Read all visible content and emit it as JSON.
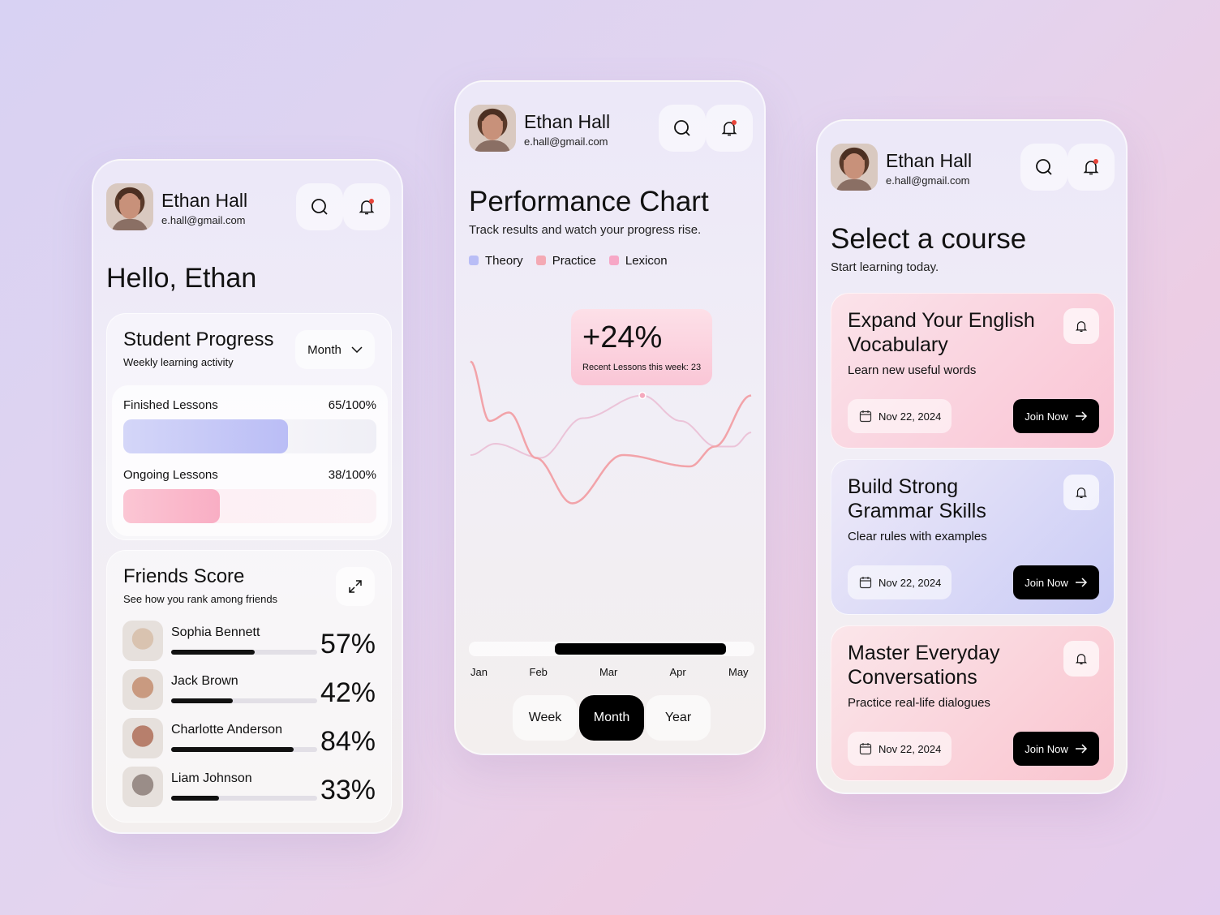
{
  "user": {
    "name": "Ethan Hall",
    "email": "e.hall@gmail.com"
  },
  "colors": {
    "theory": "#b9bdf6",
    "practice": "#f4a9b4",
    "lexicon": "#f7a7c6",
    "notification_dot": "#e8443a"
  },
  "left": {
    "greeting": "Hello, Ethan",
    "progress": {
      "title": "Student Progress",
      "subtitle": "Weekly learning activity",
      "period": "Month",
      "items": [
        {
          "label": "Finished Lessons",
          "value_text": "65/100%",
          "value": 65
        },
        {
          "label": "Ongoing Lessons",
          "value_text": "38/100%",
          "value": 38
        }
      ]
    },
    "friends": {
      "title": "Friends Score",
      "subtitle": "See how you rank among friends",
      "items": [
        {
          "name": "Sophia Bennett",
          "pct": "57%",
          "value": 57
        },
        {
          "name": "Jack Brown",
          "pct": "42%",
          "value": 42
        },
        {
          "name": "Charlotte Anderson",
          "pct": "84%",
          "value": 84
        },
        {
          "name": "Liam Johnson",
          "pct": "33%",
          "value": 33
        }
      ]
    }
  },
  "middle": {
    "title": "Performance Chart",
    "subtitle": "Track results and watch your progress rise.",
    "legend": [
      "Theory",
      "Practice",
      "Lexicon"
    ],
    "tooltip": {
      "value": "+24%",
      "label": "Recent Lessons this week: 23"
    },
    "periods": [
      "Week",
      "Month",
      "Year"
    ],
    "active_period": "Month"
  },
  "chart_data": {
    "type": "bar",
    "categories": [
      "Jan",
      "Feb",
      "Mar",
      "Apr",
      "May"
    ],
    "bars_envelope": [
      [
        0,
        64
      ],
      [
        0.35,
        68
      ],
      [
        1,
        63
      ],
      [
        1.6,
        77
      ],
      [
        2.45,
        85
      ],
      [
        3.0,
        76
      ],
      [
        3.5,
        67
      ],
      [
        3.75,
        67
      ],
      [
        4,
        72
      ]
    ],
    "line": [
      [
        0,
        97
      ],
      [
        0.27,
        76
      ],
      [
        0.55,
        79
      ],
      [
        0.93,
        63
      ],
      [
        1.45,
        47
      ],
      [
        2.17,
        64
      ],
      [
        3.13,
        60
      ],
      [
        3.48,
        67
      ],
      [
        4,
        85
      ]
    ],
    "highlight_range": [
      1.2,
      3.5
    ],
    "ylim": [
      0,
      100
    ],
    "scroll_range": [
      1.2,
      3.6
    ]
  },
  "right": {
    "title": "Select a course",
    "subtitle": "Start learning today.",
    "courses": [
      {
        "title": "Expand Your English Vocabulary",
        "desc": "Learn new useful words",
        "date": "Nov 22, 2024",
        "cta": "Join Now"
      },
      {
        "title": "Build Strong Grammar Skills",
        "desc": "Clear rules with examples",
        "date": "Nov 22, 2024",
        "cta": "Join Now"
      },
      {
        "title": "Master Everyday Conversations",
        "desc": "Practice real-life dialogues",
        "date": "Nov 22, 2024",
        "cta": "Join Now"
      }
    ]
  }
}
